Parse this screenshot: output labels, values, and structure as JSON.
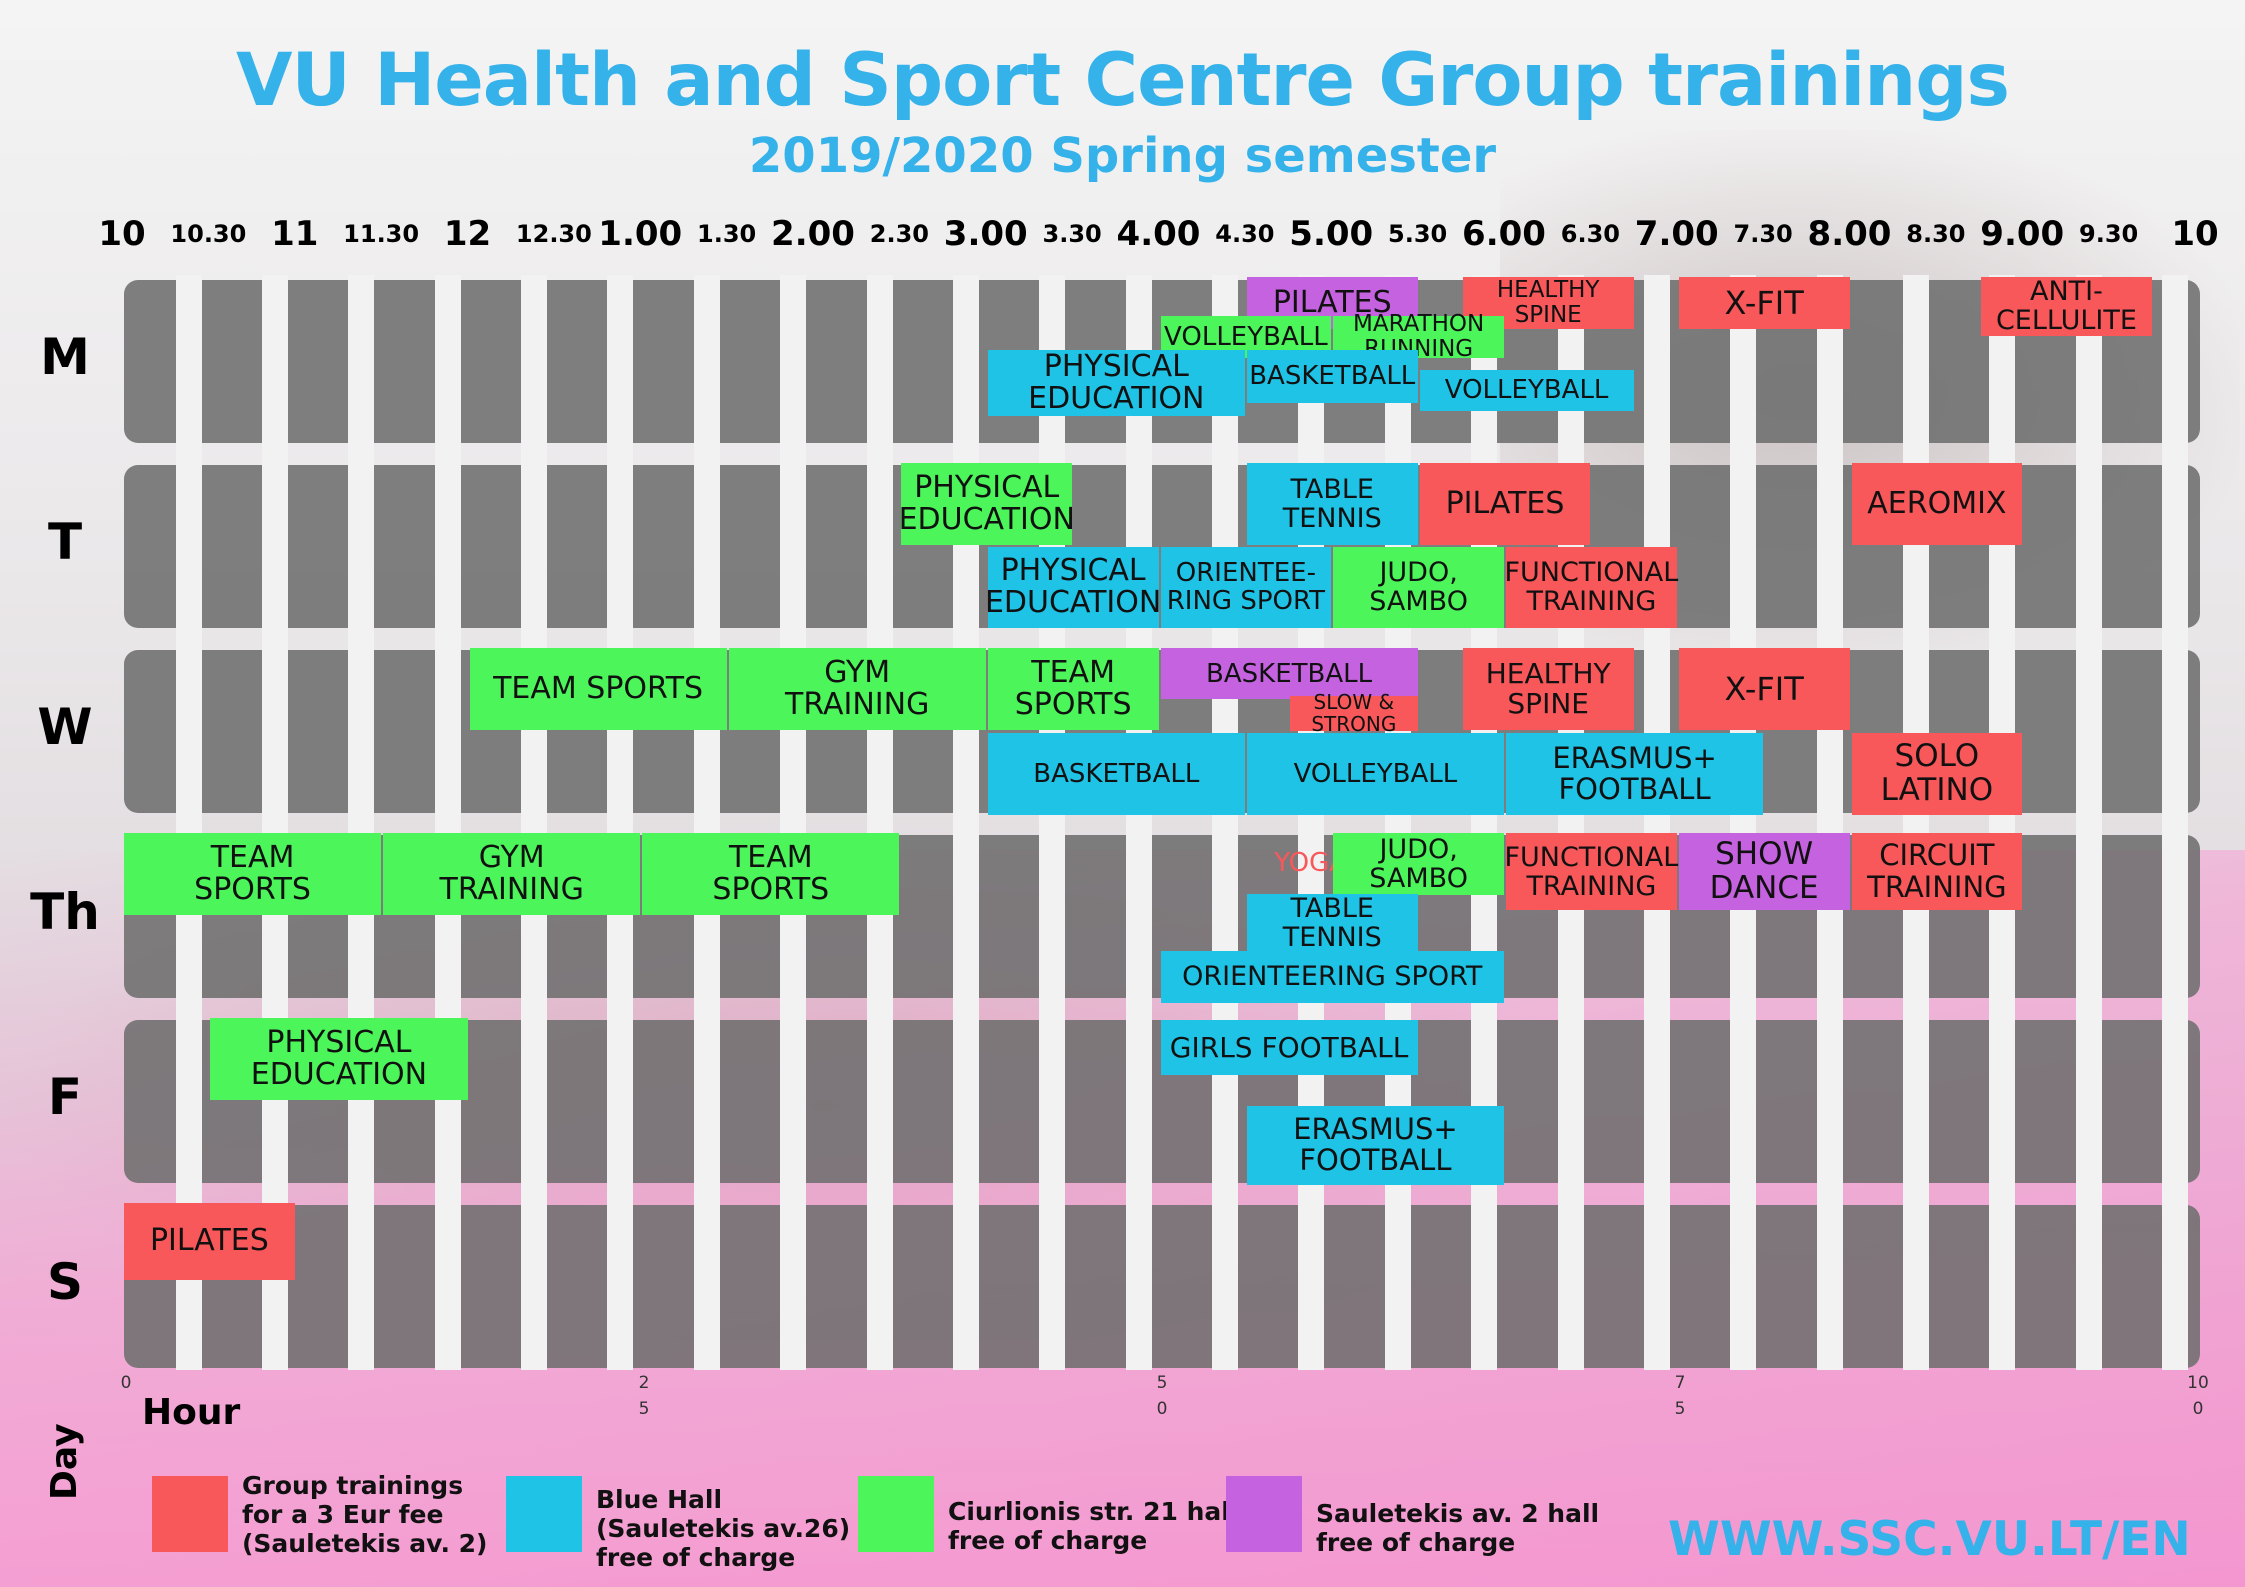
{
  "title": "VU Health and Sport Centre Group trainings",
  "subtitle": "2019/2020 Spring semester",
  "hour_labels": [
    {
      "text": "10",
      "size": "big"
    },
    {
      "text": "10.30",
      "size": "small"
    },
    {
      "text": "11",
      "size": "big"
    },
    {
      "text": "11.30",
      "size": "small"
    },
    {
      "text": "12",
      "size": "big"
    },
    {
      "text": "12.30",
      "size": "small"
    },
    {
      "text": "1.00",
      "size": "big"
    },
    {
      "text": "1.30",
      "size": "small"
    },
    {
      "text": "2.00",
      "size": "big"
    },
    {
      "text": "2.30",
      "size": "small"
    },
    {
      "text": "3.00",
      "size": "big"
    },
    {
      "text": "3.30",
      "size": "small"
    },
    {
      "text": "4.00",
      "size": "big"
    },
    {
      "text": "4.30",
      "size": "small"
    },
    {
      "text": "5.00",
      "size": "big"
    },
    {
      "text": "5.30",
      "size": "small"
    },
    {
      "text": "6.00",
      "size": "big"
    },
    {
      "text": "6.30",
      "size": "small"
    },
    {
      "text": "7.00",
      "size": "big"
    },
    {
      "text": "7.30",
      "size": "small"
    },
    {
      "text": "8.00",
      "size": "big"
    },
    {
      "text": "8.30",
      "size": "small"
    },
    {
      "text": "9.00",
      "size": "big"
    },
    {
      "text": "9.30",
      "size": "small"
    },
    {
      "text": "10",
      "size": "big"
    }
  ],
  "days": [
    "M",
    "T",
    "W",
    "Th",
    "F",
    "S"
  ],
  "events": [
    {
      "day": "M",
      "start": "4.30",
      "end": "5.30",
      "text": "PILATES",
      "color": "purple"
    },
    {
      "day": "M",
      "start": "5.45",
      "end": "6.45",
      "text": "HEALTHY SPINE",
      "color": "red"
    },
    {
      "day": "M",
      "start": "7.00",
      "end": "8.00",
      "text": "X-FIT",
      "color": "red"
    },
    {
      "day": "M",
      "start": "8.45",
      "end": "9.45",
      "text": "ANTI-\nCELLULITE",
      "color": "red"
    },
    {
      "day": "M",
      "start": "4.00",
      "end": "5.00",
      "text": "VOLLEYBALL",
      "color": "green"
    },
    {
      "day": "M",
      "start": "5.00",
      "end": "6.00",
      "text": "MARATHON\nRUNNING",
      "color": "green"
    },
    {
      "day": "M",
      "start": "3.00",
      "end": "4.30",
      "text": "PHYSICAL\nEDUCATION",
      "color": "blue"
    },
    {
      "day": "M",
      "start": "4.30",
      "end": "5.30",
      "text": "BASKETBALL",
      "color": "blue"
    },
    {
      "day": "M",
      "start": "5.30",
      "end": "6.45",
      "text": "VOLLEYBALL",
      "color": "blue"
    },
    {
      "day": "T",
      "start": "2.30",
      "end": "3.30",
      "text": "PHYSICAL\nEDUCATION",
      "color": "green"
    },
    {
      "day": "T",
      "start": "4.30",
      "end": "5.30",
      "text": "TABLE\nTENNIS",
      "color": "blue"
    },
    {
      "day": "T",
      "start": "5.30",
      "end": "6.30",
      "text": "PILATES",
      "color": "red"
    },
    {
      "day": "T",
      "start": "8.00",
      "end": "9.00",
      "text": "AEROMIX",
      "color": "red"
    },
    {
      "day": "T",
      "start": "3.00",
      "end": "4.00",
      "text": "PHYSICAL\nEDUCATION",
      "color": "blue"
    },
    {
      "day": "T",
      "start": "4.00",
      "end": "5.00",
      "text": "ORIENTEE-\nRING SPORT",
      "color": "blue"
    },
    {
      "day": "T",
      "start": "5.00",
      "end": "6.00",
      "text": "JUDO,\nSAMBO",
      "color": "green"
    },
    {
      "day": "T",
      "start": "6.00",
      "end": "7.00",
      "text": "FUNCTIONAL\nTRAINING",
      "color": "red"
    },
    {
      "day": "W",
      "start": "12.00",
      "end": "1.30",
      "text": "TEAM SPORTS",
      "color": "green"
    },
    {
      "day": "W",
      "start": "1.30",
      "end": "3.00",
      "text": "GYM\nTRAINING",
      "color": "green"
    },
    {
      "day": "W",
      "start": "3.00",
      "end": "4.00",
      "text": "TEAM\nSPORTS",
      "color": "green"
    },
    {
      "day": "W",
      "start": "4.00",
      "end": "5.30",
      "text": "BASKETBALL",
      "color": "purple"
    },
    {
      "day": "W",
      "start": "4.30",
      "end": "5.30",
      "text": "SLOW & STRONG",
      "color": "red"
    },
    {
      "day": "W",
      "start": "5.45",
      "end": "6.45",
      "text": "HEALTHY\nSPINE",
      "color": "red"
    },
    {
      "day": "W",
      "start": "7.00",
      "end": "8.00",
      "text": "X-FIT",
      "color": "red"
    },
    {
      "day": "W",
      "start": "3.00",
      "end": "4.30",
      "text": "BASKETBALL",
      "color": "blue"
    },
    {
      "day": "W",
      "start": "4.30",
      "end": "6.00",
      "text": "VOLLEYBALL",
      "color": "blue"
    },
    {
      "day": "W",
      "start": "6.00",
      "end": "7.30",
      "text": "ERASMUS+\nFOOTBALL",
      "color": "blue"
    },
    {
      "day": "W",
      "start": "8.00",
      "end": "9.00",
      "text": "SOLO\nLATINO",
      "color": "red"
    },
    {
      "day": "Th",
      "start": "10.00",
      "end": "11.30",
      "text": "TEAM\nSPORTS",
      "color": "green"
    },
    {
      "day": "Th",
      "start": "11.30",
      "end": "1.00",
      "text": "GYM\nTRAINING",
      "color": "green"
    },
    {
      "day": "Th",
      "start": "1.00",
      "end": "2.30",
      "text": "TEAM\nSPORTS",
      "color": "green"
    },
    {
      "day": "Th",
      "start": "4.30",
      "end": "5.30",
      "text": "YOGA",
      "color": "none"
    },
    {
      "day": "Th",
      "start": "5.00",
      "end": "6.00",
      "text": "JUDO,\nSAMBO",
      "color": "green"
    },
    {
      "day": "Th",
      "start": "6.00",
      "end": "7.00",
      "text": "FUNCTIONAL\nTRAINING",
      "color": "red"
    },
    {
      "day": "Th",
      "start": "7.00",
      "end": "8.00",
      "text": "SHOW\nDANCE",
      "color": "purple"
    },
    {
      "day": "Th",
      "start": "8.00",
      "end": "9.00",
      "text": "CIRCUIT\nTRAINING",
      "color": "red"
    },
    {
      "day": "Th",
      "start": "4.30",
      "end": "5.30",
      "text": "TABLE\nTENNIS",
      "color": "blue"
    },
    {
      "day": "Th",
      "start": "4.00",
      "end": "6.00",
      "text": "ORIENTEERING SPORT",
      "color": "blue"
    },
    {
      "day": "F",
      "start": "10.30",
      "end": "12.00",
      "text": "PHYSICAL\nEDUCATION",
      "color": "green"
    },
    {
      "day": "F",
      "start": "4.00",
      "end": "5.30",
      "text": "GIRLS FOOTBALL",
      "color": "blue"
    },
    {
      "day": "F",
      "start": "4.30",
      "end": "6.00",
      "text": "ERASMUS+\nFOOTBALL",
      "color": "blue"
    },
    {
      "day": "S",
      "start": "10.00",
      "end": "11.00",
      "text": "PILATES",
      "color": "red"
    }
  ],
  "axis_numbers": [
    {
      "top": "0",
      "bottom": ""
    },
    {
      "top": "2",
      "bottom": "5"
    },
    {
      "top": "5",
      "bottom": "0"
    },
    {
      "top": "7",
      "bottom": "5"
    },
    {
      "top": "10",
      "bottom": "0"
    }
  ],
  "axis": {
    "hour_label": "Hour",
    "day_label": "Day"
  },
  "legend": [
    {
      "color": "#f8585a",
      "text": "Group trainings\n for a 3 Eur fee\n(Sauletekis av. 2)"
    },
    {
      "color": "#1ec3e6",
      "text": "Blue Hall\n(Sauletekis av.26)\nfree of charge"
    },
    {
      "color": "#4cf55a",
      "text": "Ciurlionis str. 21 hall\nfree of charge"
    },
    {
      "color": "#c562e0",
      "text": "Sauletekis av. 2 hall\nfree of  charge"
    }
  ],
  "website": "WWW.SSC.VU.LT/EN",
  "colors": {
    "red": "#f8585a",
    "blue": "#1ec3e6",
    "green": "#4cf55a",
    "purple": "#c562e0",
    "title": "#35b2ea"
  }
}
